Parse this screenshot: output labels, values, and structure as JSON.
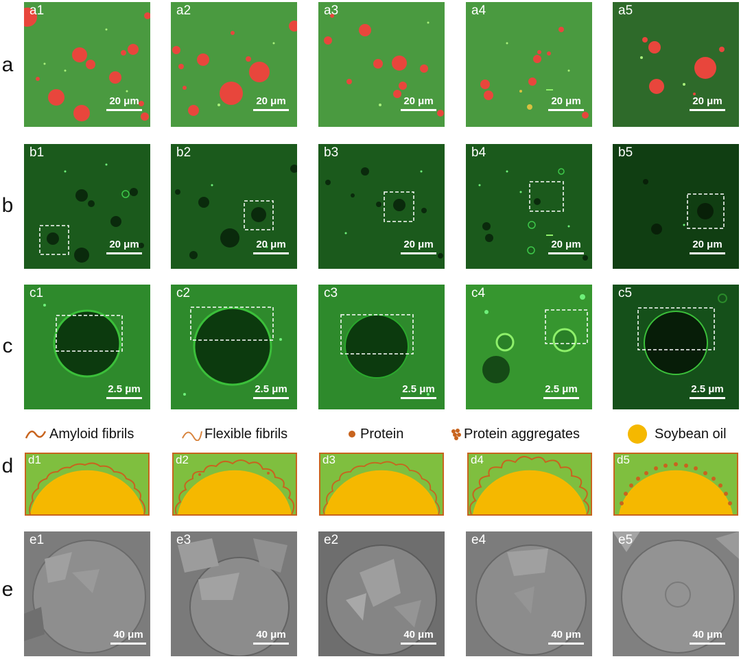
{
  "row_labels": [
    "a",
    "b",
    "c",
    "d",
    "e"
  ],
  "rows": {
    "a": {
      "panels": [
        "a1",
        "a2",
        "a3",
        "a4",
        "a5"
      ],
      "scale": "20 μm"
    },
    "b": {
      "panels": [
        "b1",
        "b2",
        "b3",
        "b4",
        "b5"
      ],
      "scale": "20 μm"
    },
    "c": {
      "panels": [
        "c1",
        "c2",
        "c3",
        "c4",
        "c5"
      ],
      "scale": "2.5 μm"
    },
    "d": {
      "panels": [
        "d1",
        "d2",
        "d3",
        "d4",
        "d5"
      ]
    },
    "e": {
      "panels": [
        "e1",
        "e3",
        "e2",
        "e4",
        "e5"
      ],
      "scale": "40 μm"
    }
  },
  "legend": [
    {
      "label": "Amyloid fibrils",
      "icon": "amyloid-fibril-icon"
    },
    {
      "label": "Flexible fibrils",
      "icon": "flexible-fibril-icon"
    },
    {
      "label": "Protein",
      "icon": "protein-dot-icon"
    },
    {
      "label": "Protein aggregates",
      "icon": "protein-aggregate-icon"
    },
    {
      "label": "Soybean oil",
      "icon": "soybean-oil-icon"
    }
  ],
  "colors": {
    "confocal_green": "#3f9a3a",
    "dark_green": "#0f4a12",
    "oil_red": "#e8463c",
    "schematic_bg": "#7fbf3f",
    "oil_yellow": "#f5b800",
    "fibril_orange": "#c8641e",
    "sem_gray": "#8a8a8a"
  }
}
